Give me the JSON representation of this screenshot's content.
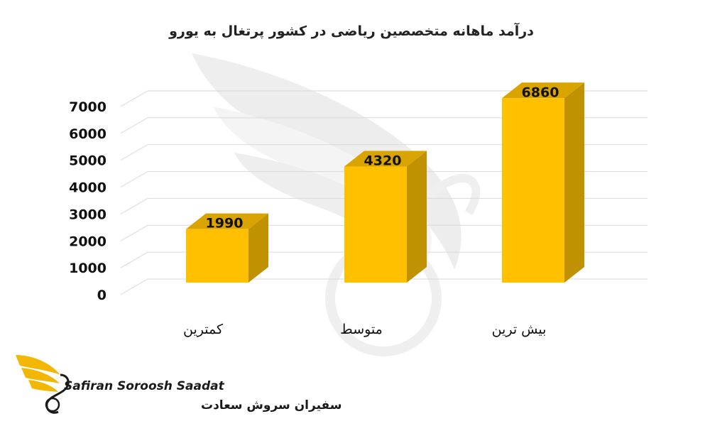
{
  "chart_data": {
    "type": "bar",
    "title": "درآمد ماهانه متخصصین ریاضی در کشور پرتغال به یورو",
    "categories": [
      "کمترین",
      "متوسط",
      "بیش ترین"
    ],
    "values": [
      1990,
      4320,
      6860
    ],
    "data_labels": [
      "1990",
      "4320",
      "6860"
    ],
    "yticks": [
      "0",
      "1000",
      "2000",
      "3000",
      "4000",
      "5000",
      "6000",
      "7000"
    ],
    "ylim": [
      0,
      7000
    ],
    "grid": true,
    "legend": false,
    "style": "3d-column",
    "bar_color": "#FFC000",
    "bar_side_color": "#C09100",
    "bar_top_color": "#D9A300"
  },
  "logo": {
    "name_en": "Safiran Soroosh Saadat",
    "name_fa": "سفیران سروش سعادت",
    "icon": "golden-wing-logo-icon",
    "accent_color": "#F2B705"
  },
  "watermark": {
    "icon": "wing-watermark-icon"
  }
}
